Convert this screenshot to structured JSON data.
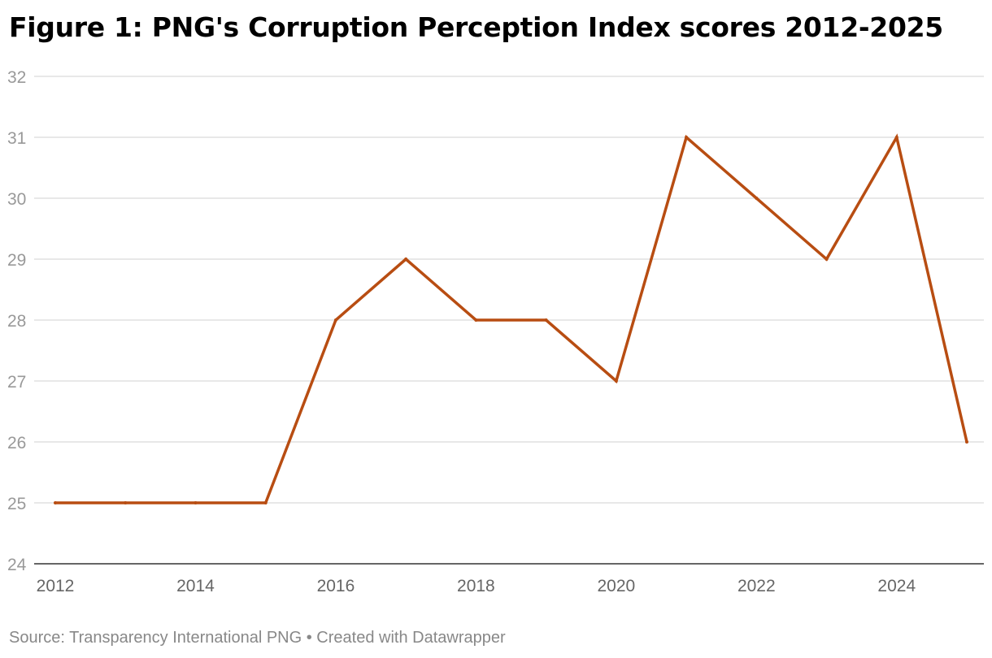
{
  "title": "Figure 1: PNG's Corruption Perception Index scores 2012-2025",
  "source": "Source: Transparency International PNG • Created with Datawrapper",
  "colors": {
    "line": "#b84d12",
    "grid": "#e0e0e0",
    "axis": "#333333"
  },
  "chart_data": {
    "type": "line",
    "title": "Figure 1: PNG's Corruption Perception Index scores 2012-2025",
    "xlabel": "",
    "ylabel": "",
    "x": [
      2012,
      2013,
      2014,
      2015,
      2016,
      2017,
      2018,
      2019,
      2020,
      2021,
      2022,
      2023,
      2024,
      2025
    ],
    "series": [
      {
        "values": [
          25,
          25,
          25,
          25,
          28,
          29,
          28,
          28,
          27,
          31,
          30,
          29,
          31,
          26
        ]
      }
    ],
    "xlim": [
      2012,
      2025
    ],
    "ylim": [
      24,
      32
    ],
    "x_ticks": [
      "2012",
      "2014",
      "2016",
      "2018",
      "2020",
      "2022",
      "2024"
    ],
    "y_ticks": [
      "24",
      "25",
      "26",
      "27",
      "28",
      "29",
      "30",
      "31",
      "32"
    ],
    "grid": true,
    "legend": "none"
  }
}
